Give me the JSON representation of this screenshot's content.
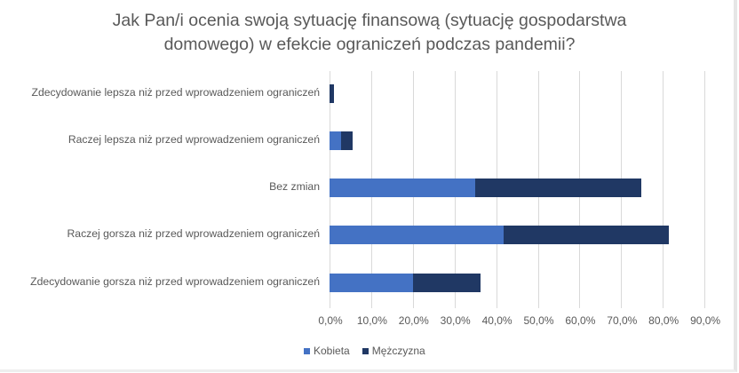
{
  "chart_data": {
    "type": "bar",
    "orientation": "horizontal",
    "stacked": true,
    "title": "Jak Pan/i ocenia swoją sytuację finansową (sytuację gospodarstwa domowego) w efekcie ograniczeń podczas pandemii?",
    "title_lines": [
      "Jak Pan/i ocenia swoją sytuację finansową (sytuację gospodarstwa",
      "domowego) w efekcie ograniczeń podczas pandemii?"
    ],
    "categories": [
      "Zdecydowanie lepsza niż przed wprowadzeniem ograniczeń",
      "Raczej lepsza niż przed wprowadzeniem ograniczeń",
      "Bez zmian",
      "Raczej gorsza niż przed wprowadzeniem ograniczeń",
      "Zdecydowanie gorsza niż przed wprowadzeniem ograniczeń"
    ],
    "series": [
      {
        "name": "Kobieta",
        "color": "#4472c4",
        "values": [
          0.0,
          2.8,
          35.0,
          41.7,
          20.0
        ]
      },
      {
        "name": "Mężczyzna",
        "color": "#203864",
        "values": [
          1.0,
          2.8,
          39.8,
          39.8,
          16.2
        ]
      }
    ],
    "xlabel": "",
    "ylabel": "",
    "xlim": [
      0,
      90
    ],
    "x_ticks": [
      "0,0%",
      "10,0%",
      "20,0%",
      "30,0%",
      "40,0%",
      "50,0%",
      "60,0%",
      "70,0%",
      "80,0%",
      "90,0%"
    ],
    "grid": true,
    "legend_position": "bottom"
  }
}
